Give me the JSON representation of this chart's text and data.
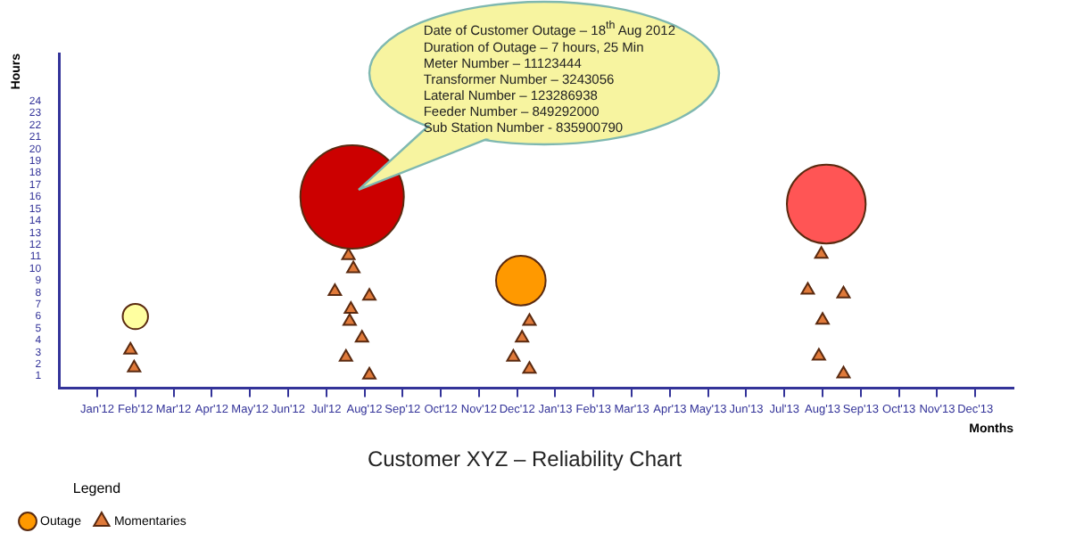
{
  "chart_data": {
    "type": "bubble",
    "title": "Customer XYZ – Reliability Chart",
    "xlabel": "Months",
    "ylabel": "Hours",
    "legend_title": "Legend",
    "legend": "bottom left",
    "xlim": [
      "2011-12",
      "2014-01"
    ],
    "xticks": [
      {
        "value": "2012-01",
        "label": "Jan'12"
      },
      {
        "value": "2012-02",
        "label": "Feb'12"
      },
      {
        "value": "2012-03",
        "label": "Mar'12"
      },
      {
        "value": "2012-04",
        "label": "Apr'12"
      },
      {
        "value": "2012-05",
        "label": "May'12"
      },
      {
        "value": "2012-06",
        "label": "Jun'12"
      },
      {
        "value": "2012-07",
        "label": "Jul'12"
      },
      {
        "value": "2012-08",
        "label": "Aug'12"
      },
      {
        "value": "2012-09",
        "label": "Sep'12"
      },
      {
        "value": "2012-10",
        "label": "Oct'12"
      },
      {
        "value": "2012-11",
        "label": "Nov'12"
      },
      {
        "value": "2012-12",
        "label": "Dec'12"
      },
      {
        "value": "2013-01",
        "label": "Jan'13"
      },
      {
        "value": "2013-02",
        "label": "Feb'13"
      },
      {
        "value": "2013-03",
        "label": "Mar'13"
      },
      {
        "value": "2013-04",
        "label": "Apr'13"
      },
      {
        "value": "2013-05",
        "label": "May'13"
      },
      {
        "value": "2013-06",
        "label": "Jun'13"
      },
      {
        "value": "2013-07",
        "label": "Jul'13"
      },
      {
        "value": "2013-08",
        "label": "Aug'13"
      },
      {
        "value": "2013-09",
        "label": "Sep'13"
      },
      {
        "value": "2013-10",
        "label": "Oct'13"
      },
      {
        "value": "2013-11",
        "label": "Nov'13"
      },
      {
        "value": "2013-12",
        "label": "Dec'13"
      }
    ],
    "ylim": [
      0,
      28
    ],
    "yticks": [
      1,
      2,
      3,
      4,
      5,
      6,
      7,
      8,
      9,
      10,
      11,
      12,
      13,
      14,
      15,
      16,
      17,
      18,
      19,
      20,
      21,
      22,
      23,
      24
    ],
    "series": [
      {
        "name": "Outage",
        "color": "#ff9900",
        "colors": [
          "#ffffa0",
          "#cc0000",
          "#ff9900",
          "#ff5555"
        ],
        "x": [
          "2012-02-01",
          "2012-07-22",
          "2012-12-04",
          "2013-08-04"
        ],
        "values": [
          6,
          16,
          9,
          15.4
        ],
        "sizes": [
          0.06,
          1,
          0.23,
          0.58
        ]
      },
      {
        "name": "Momentaries",
        "type": "scatter",
        "marker": "triangle",
        "color": "#e07a3a",
        "x": [
          "2012-01-28",
          "2012-01-31",
          "2012-07-19",
          "2012-07-23",
          "2012-07-08",
          "2012-08-05",
          "2012-07-21",
          "2012-07-20",
          "2012-07-30",
          "2012-07-17",
          "2012-08-05",
          "2012-12-11",
          "2012-12-05",
          "2012-11-28",
          "2012-12-11",
          "2013-07-31",
          "2013-07-20",
          "2013-08-18",
          "2013-08-01",
          "2013-07-29",
          "2013-08-18"
        ],
        "values": [
          3.2,
          1.7,
          11.1,
          10,
          8.1,
          7.7,
          6.6,
          5.6,
          4.2,
          2.6,
          1.1,
          5.6,
          4.2,
          2.6,
          1.6,
          11.2,
          8.2,
          7.9,
          5.7,
          2.7,
          1.2
        ]
      }
    ],
    "annotations": [
      "Date of Customer Outage – 18$^{th}$ Aug 2012",
      "Duration of Outage – 7 hours, 25 Min",
      "Meter Number – 11123444",
      "Transformer Number – 3243056",
      "Lateral Number – 123286938",
      "Feeder Number – 849292000",
      "Sub Station Number - 835900790"
    ]
  }
}
